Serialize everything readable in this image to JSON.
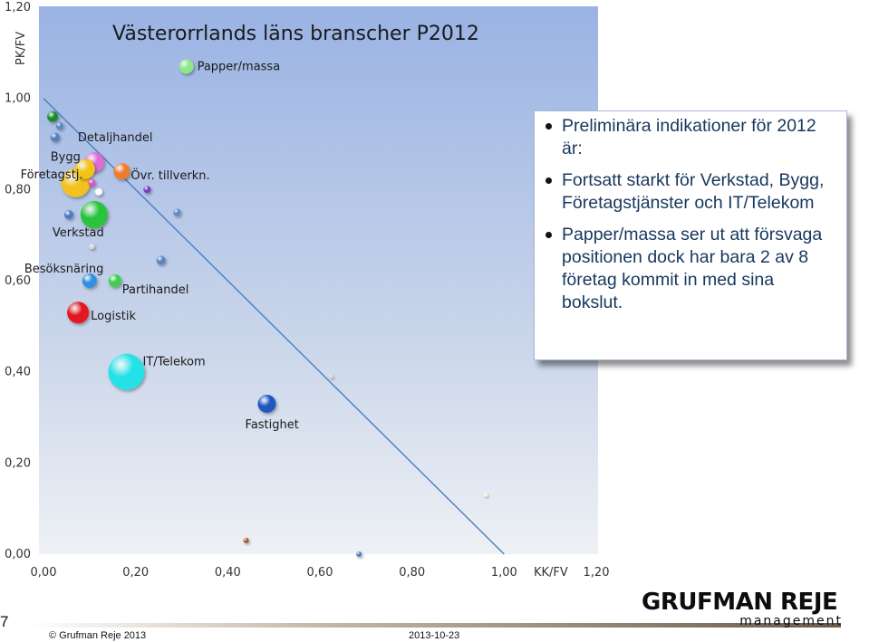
{
  "chart_data": {
    "type": "scatter",
    "title": "Västerorrlands läns branscher P2012",
    "xlabel": "KK/FV",
    "ylabel": "PK/FV",
    "xlim": [
      0,
      1.2
    ],
    "ylim": [
      0,
      1.2
    ],
    "x_ticks": [
      "0,00",
      "0,20",
      "0,40",
      "0,60",
      "0,80",
      "1,00",
      "1,20"
    ],
    "y_ticks": [
      "0,00",
      "0,20",
      "0,40",
      "0,60",
      "0,80",
      "1,00",
      "1,20"
    ],
    "grid": false,
    "reference_line": {
      "from": [
        0,
        1.0
      ],
      "to": [
        1.0,
        0
      ]
    },
    "points": [
      {
        "label": "Papper/massa",
        "x": 0.31,
        "y": 1.07,
        "size": 8,
        "color": "#8fe88a"
      },
      {
        "label": "",
        "x": 0.02,
        "y": 0.96,
        "size": 6,
        "color": "#1a8a2a"
      },
      {
        "label": "",
        "x": 0.035,
        "y": 0.94,
        "size": 4,
        "color": "#5b86c9"
      },
      {
        "label": "",
        "x": 0.025,
        "y": 0.915,
        "size": 5,
        "color": "#4f7fc4"
      },
      {
        "label": "Detaljhandel",
        "x": 0.11,
        "y": 0.86,
        "size": 11,
        "color": "#e16ad7"
      },
      {
        "label": "Bygg",
        "x": 0.09,
        "y": 0.845,
        "size": 11,
        "color": "#f2c418"
      },
      {
        "label": "Företagstj.",
        "x": 0.07,
        "y": 0.815,
        "size": 16,
        "color": "#f5c21a"
      },
      {
        "label": "",
        "x": 0.105,
        "y": 0.815,
        "size": 4,
        "color": "#e050c8"
      },
      {
        "label": "",
        "x": 0.12,
        "y": 0.795,
        "size": 4,
        "color": "#ffffff"
      },
      {
        "label": "Övr. tillverkn.",
        "x": 0.17,
        "y": 0.84,
        "size": 9,
        "color": "#f07c2a"
      },
      {
        "label": "",
        "x": 0.225,
        "y": 0.8,
        "size": 4,
        "color": "#7a3cbf"
      },
      {
        "label": "",
        "x": 0.29,
        "y": 0.75,
        "size": 4,
        "color": "#5c86c7"
      },
      {
        "label": "",
        "x": 0.055,
        "y": 0.745,
        "size": 5,
        "color": "#4a7bc2"
      },
      {
        "label": "Verkstad",
        "x": 0.11,
        "y": 0.745,
        "size": 15,
        "color": "#27c43a"
      },
      {
        "label": "",
        "x": 0.105,
        "y": 0.675,
        "size": 3,
        "color": "#d8d8d8"
      },
      {
        "label": "",
        "x": 0.255,
        "y": 0.645,
        "size": 5,
        "color": "#5a83c5"
      },
      {
        "label": "Besöksnäring",
        "x": 0.1,
        "y": 0.6,
        "size": 8,
        "color": "#2d8fe0"
      },
      {
        "label": "Partihandel",
        "x": 0.155,
        "y": 0.6,
        "size": 7,
        "color": "#36d24a"
      },
      {
        "label": "Logistik",
        "x": 0.075,
        "y": 0.53,
        "size": 12,
        "color": "#e4161e"
      },
      {
        "label": "IT/Telekom",
        "x": 0.18,
        "y": 0.4,
        "size": 20,
        "color": "#22e2e6"
      },
      {
        "label": "Fastighet",
        "x": 0.485,
        "y": 0.33,
        "size": 10,
        "color": "#1f55c2"
      },
      {
        "label": "",
        "x": 0.625,
        "y": 0.39,
        "size": 2,
        "color": "#d7d7d7"
      },
      {
        "label": "",
        "x": 0.96,
        "y": 0.13,
        "size": 2,
        "color": "#fff9c8"
      },
      {
        "label": "",
        "x": 0.44,
        "y": 0.03,
        "size": 3,
        "color": "#a0522d"
      },
      {
        "label": "",
        "x": 0.685,
        "y": 0.0,
        "size": 3,
        "color": "#4a7bc2"
      }
    ]
  },
  "note": {
    "items": [
      "Preliminära indikationer för 2012 är:",
      "Fortsatt starkt för Verkstad, Bygg, Företagstjänster och IT/Telekom",
      "Papper/massa ser ut att försvaga positionen dock har bara 2 av 8 företag kommit in med sina bokslut."
    ]
  },
  "footer": {
    "page_number": "7",
    "copyright": "© Grufman Reje 2013",
    "date": "2013-10-23",
    "logo_main": "GRUFMAN REJE",
    "logo_sub": "management"
  },
  "colors": {
    "plot_bg_top": "#9ab3e4",
    "plot_bg_bottom": "#e8ecf2",
    "reference_line": "#4a7fc2"
  }
}
